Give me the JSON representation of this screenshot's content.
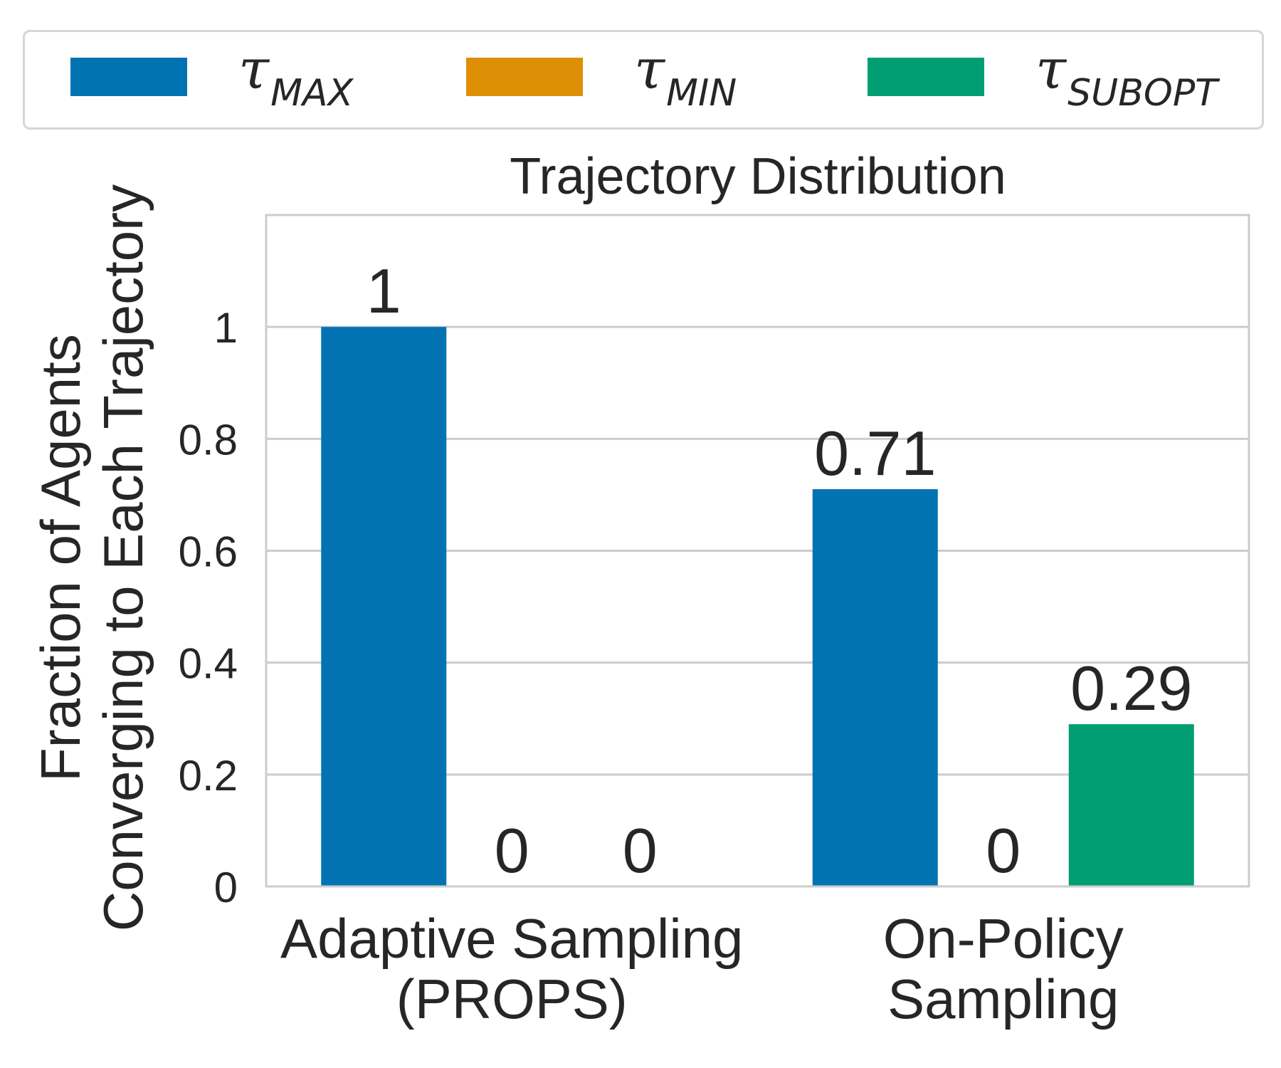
{
  "legend": {
    "items": [
      {
        "symbol": "τ",
        "subscript": "MAX",
        "color": "#0173b2"
      },
      {
        "symbol": "τ",
        "subscript": "MIN",
        "color": "#de8f05"
      },
      {
        "symbol": "τ",
        "subscript": "SUBOPT",
        "color": "#029e73"
      }
    ]
  },
  "chart_data": {
    "type": "bar",
    "title": "Trajectory Distribution",
    "xlabel": "",
    "ylabel_lines": [
      "Fraction of Agents",
      "Converging to Each Trajectory"
    ],
    "categories": [
      [
        "Adaptive Sampling",
        "(PROPS)"
      ],
      [
        "On-Policy",
        "Sampling"
      ]
    ],
    "series": [
      {
        "name": "τ_MAX",
        "color": "#0173b2",
        "values": [
          1,
          0.71
        ],
        "labels": [
          "1",
          "0.71"
        ]
      },
      {
        "name": "τ_MIN",
        "color": "#de8f05",
        "values": [
          0,
          0
        ],
        "labels": [
          "0",
          "0"
        ]
      },
      {
        "name": "τ_SUBOPT",
        "color": "#029e73",
        "values": [
          0,
          0.29
        ],
        "labels": [
          "0",
          "0.29"
        ]
      }
    ],
    "ylim": [
      0,
      1.2
    ],
    "yticks": [
      0,
      0.2,
      0.4,
      0.6,
      0.8,
      1
    ],
    "ytick_labels": [
      "0",
      "0.2",
      "0.4",
      "0.6",
      "0.8",
      "1"
    ],
    "grid": true,
    "legend_position": "top"
  }
}
